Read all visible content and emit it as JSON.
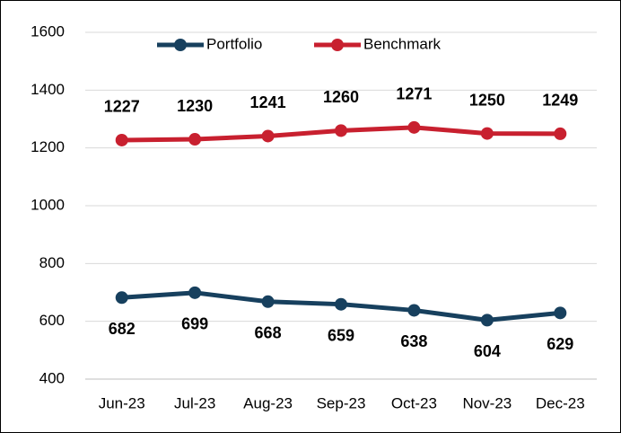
{
  "chart_data": {
    "type": "line",
    "categories": [
      "Jun-23",
      "Jul-23",
      "Aug-23",
      "Sep-23",
      "Oct-23",
      "Nov-23",
      "Dec-23"
    ],
    "series": [
      {
        "name": "Portfolio",
        "color": "#17405e",
        "values": [
          682,
          699,
          668,
          659,
          638,
          604,
          629
        ],
        "label_position": "below"
      },
      {
        "name": "Benchmark",
        "color": "#c8202f",
        "values": [
          1227,
          1230,
          1241,
          1260,
          1271,
          1250,
          1249
        ],
        "label_position": "above"
      }
    ],
    "ylim": [
      400,
      1600
    ],
    "yticks": [
      400,
      600,
      800,
      1000,
      1200,
      1400,
      1600
    ],
    "grid": true,
    "legend": "top"
  }
}
